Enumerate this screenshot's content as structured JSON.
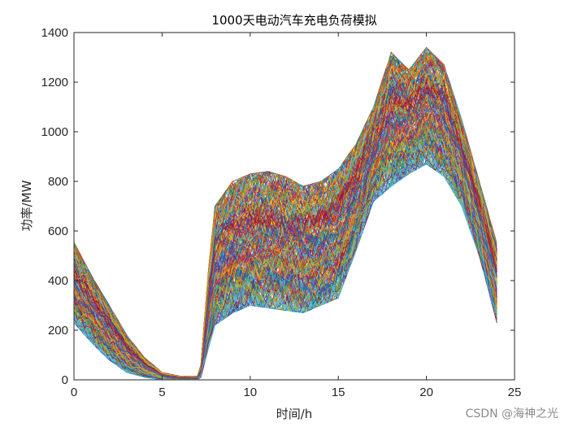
{
  "chart_data": {
    "type": "line",
    "title": "1000天电动汽车充电负荷模拟",
    "xlabel": "时间/h",
    "ylabel": "功率/MW",
    "xlim": [
      0,
      25
    ],
    "ylim": [
      0,
      1400
    ],
    "xticks": [
      0,
      5,
      10,
      15,
      20,
      25
    ],
    "yticks": [
      0,
      200,
      400,
      600,
      800,
      1000,
      1200,
      1400
    ],
    "xtick_labels": [
      "0",
      "5",
      "10",
      "15",
      "20",
      "25"
    ],
    "ytick_labels": [
      "0",
      "200",
      "400",
      "600",
      "800",
      "1000",
      "1200",
      "1400"
    ],
    "grid": false,
    "legend": "none",
    "series_count": 1000,
    "x_range": [
      0,
      24
    ],
    "envelope": {
      "x": [
        0,
        1,
        2,
        3,
        4,
        5,
        6,
        7,
        7.2,
        7.6,
        8,
        9,
        10,
        11,
        12,
        13,
        14,
        15,
        16,
        17,
        18,
        19,
        20,
        21,
        22,
        23,
        24
      ],
      "upper": [
        555,
        420,
        300,
        180,
        90,
        30,
        15,
        15,
        60,
        420,
        700,
        800,
        830,
        840,
        820,
        780,
        800,
        850,
        950,
        1100,
        1320,
        1250,
        1340,
        1270,
        1050,
        800,
        550
      ],
      "lower": [
        230,
        150,
        80,
        30,
        10,
        0,
        0,
        0,
        10,
        120,
        220,
        270,
        300,
        290,
        280,
        270,
        300,
        330,
        520,
        720,
        780,
        830,
        870,
        820,
        700,
        500,
        230
      ]
    },
    "line_colors": [
      "#0072BD",
      "#D95319",
      "#EDB120",
      "#7E2F8E",
      "#77AC30",
      "#4DBEEE",
      "#A2142F"
    ]
  },
  "watermark": "CSDN @海神之光"
}
